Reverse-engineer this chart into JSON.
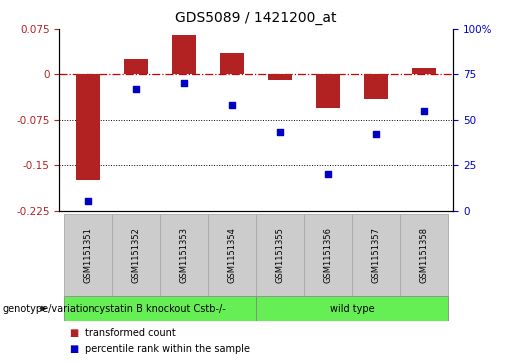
{
  "title": "GDS5089 / 1421200_at",
  "samples": [
    "GSM1151351",
    "GSM1151352",
    "GSM1151353",
    "GSM1151354",
    "GSM1151355",
    "GSM1151356",
    "GSM1151357",
    "GSM1151358"
  ],
  "bar_values": [
    -0.175,
    0.025,
    0.065,
    0.035,
    -0.01,
    -0.055,
    -0.04,
    0.01
  ],
  "dot_values": [
    5,
    67,
    70,
    58,
    43,
    20,
    42,
    55
  ],
  "ylim_left": [
    -0.225,
    0.075
  ],
  "ylim_right": [
    0,
    100
  ],
  "yticks_left": [
    0.075,
    0,
    -0.075,
    -0.15,
    -0.225
  ],
  "yticks_right": [
    100,
    75,
    50,
    25,
    0
  ],
  "hline_y": 0,
  "dotted_lines": [
    -0.075,
    -0.15
  ],
  "bar_color": "#b22222",
  "dot_color": "#0000cc",
  "dashed_line_color": "#cc0000",
  "group_ranges": [
    [
      0,
      3,
      "cystatin B knockout Cstb-/-"
    ],
    [
      4,
      7,
      "wild type"
    ]
  ],
  "group_color": "#66ee55",
  "group_label": "genotype/variation",
  "legend_bar_label": "transformed count",
  "legend_dot_label": "percentile rank within the sample",
  "bar_width": 0.5,
  "title_fontsize": 10,
  "tick_fontsize": 7.5,
  "sample_fontsize": 6,
  "group_fontsize": 7,
  "legend_fontsize": 7
}
